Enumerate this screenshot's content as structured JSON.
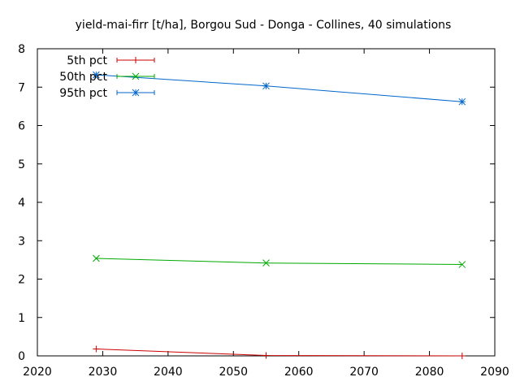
{
  "chart_data": {
    "type": "line",
    "title": "yield-mai-firr [t/ha], Borgou Sud - Donga - Collines, 40 simulations",
    "xlabel": "",
    "ylabel": "",
    "xlim": [
      2020,
      2090
    ],
    "ylim": [
      0,
      8
    ],
    "xticks": [
      2020,
      2030,
      2040,
      2050,
      2060,
      2070,
      2080,
      2090
    ],
    "yticks": [
      0,
      1,
      2,
      3,
      4,
      5,
      6,
      7,
      8
    ],
    "grid": false,
    "legend_position": "top-left",
    "x": [
      2029,
      2055,
      2085
    ],
    "series": [
      {
        "name": "5th pct",
        "values": [
          0.18,
          0.01,
          0.0
        ],
        "color": "#cc0000",
        "marker": "plus"
      },
      {
        "name": "50th pct",
        "values": [
          2.54,
          2.42,
          2.38
        ],
        "color": "#00aa00",
        "marker": "cross"
      },
      {
        "name": "95th pct",
        "values": [
          7.32,
          7.03,
          6.62
        ],
        "color": "#0066cc",
        "marker": "star"
      }
    ]
  }
}
